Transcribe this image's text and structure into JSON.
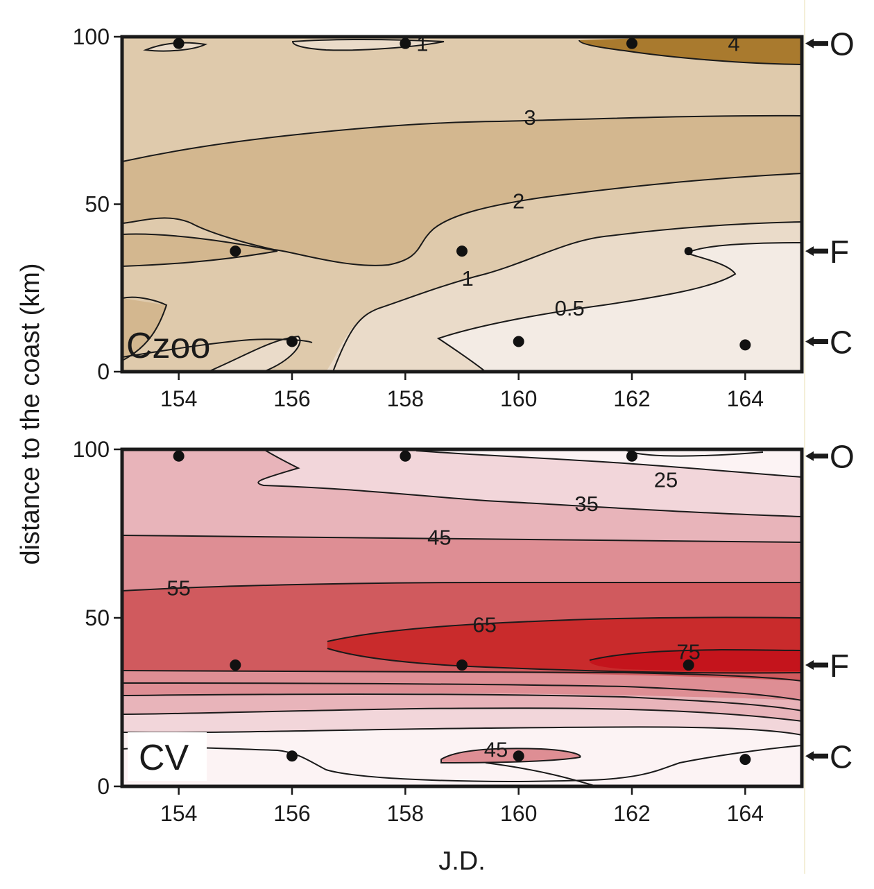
{
  "chart_data": [
    {
      "type": "contour",
      "panel_label": "Czoo",
      "xlabel": "",
      "ylabel": "distance to the coast (km)",
      "xlim": [
        153,
        165
      ],
      "ylim": [
        0,
        100
      ],
      "x_ticks": [
        "154",
        "156",
        "158",
        "160",
        "162",
        "164"
      ],
      "y_ticks": [
        "0",
        "50",
        "100"
      ],
      "fill_levels": [
        {
          "name": "< 0.5",
          "color": "#f3ebe4"
        },
        {
          "name": "0.5 - 1",
          "color": "#eadbc9"
        },
        {
          "name": "1 - 2",
          "color": "#dfcaac"
        },
        {
          "name": "2 - 3",
          "color": "#d3b78f"
        },
        {
          "name": "3 - 4",
          "color": "#dfcaac"
        },
        {
          "name": "> 4",
          "color": "#a97a2e"
        }
      ],
      "contour_labels": [
        {
          "text": "1",
          "x": 158.3,
          "y": 98
        },
        {
          "text": "4",
          "x": 163.8,
          "y": 98
        },
        {
          "text": "3",
          "x": 160.2,
          "y": 76
        },
        {
          "text": "2",
          "x": 160.0,
          "y": 51
        },
        {
          "text": "1",
          "x": 159.1,
          "y": 28
        },
        {
          "text": "0.5",
          "x": 160.9,
          "y": 19
        }
      ],
      "sampling_points": [
        {
          "x": 154,
          "y": 98
        },
        {
          "x": 158,
          "y": 98
        },
        {
          "x": 162,
          "y": 98
        },
        {
          "x": 155,
          "y": 36
        },
        {
          "x": 159,
          "y": 36
        },
        {
          "x": 163,
          "y": 36
        },
        {
          "x": 156,
          "y": 9
        },
        {
          "x": 160,
          "y": 9
        },
        {
          "x": 164,
          "y": 8
        }
      ],
      "stations": [
        {
          "label": "O",
          "y": 98
        },
        {
          "label": "F",
          "y": 36
        },
        {
          "label": "C",
          "y": 9
        }
      ]
    },
    {
      "type": "contour",
      "panel_label": "CV",
      "xlabel": "J.D.",
      "ylabel": "",
      "xlim": [
        153,
        165
      ],
      "ylim": [
        0,
        100
      ],
      "x_ticks": [
        "154",
        "156",
        "158",
        "160",
        "162",
        "164"
      ],
      "y_ticks": [
        "0",
        "50",
        "100"
      ],
      "fill_levels": [
        {
          "name": "< 25",
          "color": "#fcf3f4"
        },
        {
          "name": "25 - 35",
          "color": "#f2d6da"
        },
        {
          "name": "35 - 45",
          "color": "#e8b4ba"
        },
        {
          "name": "45 - 55",
          "color": "#de8e94"
        },
        {
          "name": "55 - 65",
          "color": "#d05a5e"
        },
        {
          "name": "65 - 75",
          "color": "#c92b2c"
        },
        {
          "name": "> 75",
          "color": "#c4141c"
        }
      ],
      "contour_labels": [
        {
          "text": "25",
          "x": 162.6,
          "y": 91
        },
        {
          "text": "35",
          "x": 161.2,
          "y": 84
        },
        {
          "text": "45",
          "x": 158.6,
          "y": 74
        },
        {
          "text": "55",
          "x": 154.0,
          "y": 59
        },
        {
          "text": "65",
          "x": 159.4,
          "y": 48
        },
        {
          "text": "75",
          "x": 163.0,
          "y": 40
        },
        {
          "text": "45",
          "x": 159.6,
          "y": 11
        }
      ],
      "sampling_points": [
        {
          "x": 154,
          "y": 98
        },
        {
          "x": 158,
          "y": 98
        },
        {
          "x": 162,
          "y": 98
        },
        {
          "x": 155,
          "y": 36
        },
        {
          "x": 159,
          "y": 36
        },
        {
          "x": 163,
          "y": 36
        },
        {
          "x": 156,
          "y": 9
        },
        {
          "x": 160,
          "y": 9
        },
        {
          "x": 164,
          "y": 8
        }
      ],
      "stations": [
        {
          "label": "O",
          "y": 98
        },
        {
          "label": "F",
          "y": 36
        },
        {
          "label": "C",
          "y": 9
        }
      ]
    }
  ]
}
